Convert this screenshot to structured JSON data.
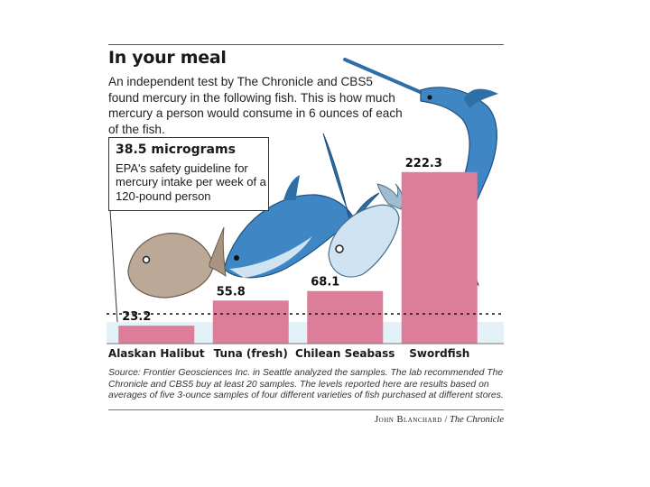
{
  "graphic": {
    "title": "In your meal",
    "intro": "An independent test by The Chronicle and CBS5 found mercury in the following fish. This is how much mercury a person would consume in 6 ounces of each of the fish.",
    "callout_value": "38.5 micrograms",
    "callout_text": "EPA's safety guideline for mercury intake per week of a 120-pound person",
    "source": "Source: Frontier Geosciences Inc. in Seattle analyzed the samples. The lab recommended The Chronicle and CBS5 buy at least 20 samples. The levels reported here are results based on averages of five 3-ounce samples of four different varieties of fish purchased at different stores.",
    "credit_author": "John Blanchard",
    "credit_separator": " / ",
    "credit_publication": "The Chronicle"
  },
  "colors": {
    "bar": "#dc7e9a",
    "guideline_band": "#e3f1f8",
    "guideline_line": "#222222",
    "fish_blue": "#3f86c4",
    "fish_light": "#cfe3f2"
  },
  "chart_data": {
    "type": "bar",
    "categories": [
      "Alaskan Halibut",
      "Tuna (fresh)",
      "Chilean Seabass",
      "Swordfish"
    ],
    "values": [
      23.2,
      55.8,
      68.1,
      222.3
    ],
    "value_labels": [
      "23.2",
      "55.8",
      "68.1",
      "222.3"
    ],
    "reference_line": {
      "value": 38.5
    },
    "ylim": [
      0,
      270
    ],
    "title": "In your meal",
    "xlabel": "",
    "ylabel": "",
    "grid": false,
    "legend": "none"
  }
}
